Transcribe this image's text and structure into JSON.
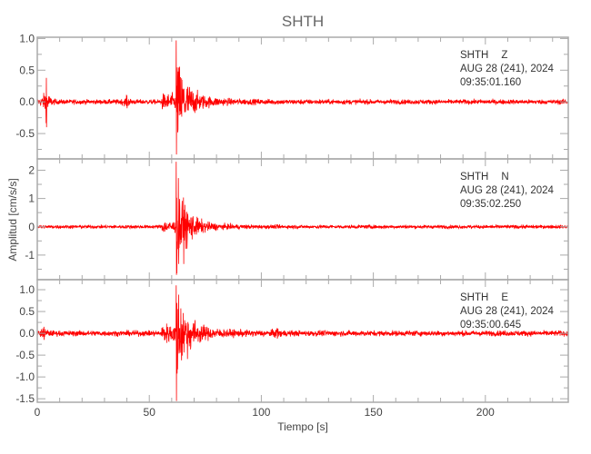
{
  "chart_data": {
    "type": "line",
    "title": "SHTH",
    "xlabel": "Tiempo [s]",
    "ylabel": "Amplitud [cm/s/s]",
    "xlim": [
      0,
      237
    ],
    "x_ticks": [
      0,
      50,
      100,
      150,
      200
    ],
    "line_color": "#ff0000",
    "axis_color": "#aaaaaa",
    "grid": false,
    "panels": [
      {
        "station": "SHTH",
        "channel": "Z",
        "date": "AUG 28 (241), 2024",
        "start_time": "09:35:01.160",
        "ylim": [
          -0.9,
          1.02
        ],
        "y_ticks": [
          1.0,
          0.5,
          0.0,
          -0.5
        ],
        "y_tick_labels": [
          "1.0",
          "0.5",
          "0.0",
          "-0.5"
        ],
        "noise": 0.03,
        "peak_time": 62,
        "peak_max": 0.97,
        "peak_min": -0.83,
        "minor_events": [
          {
            "t": 4,
            "max": 0.38,
            "min": -0.4
          },
          {
            "t": 40,
            "max": 0.1,
            "min": -0.1
          }
        ]
      },
      {
        "station": "SHTH",
        "channel": "N",
        "date": "AUG 28 (241), 2024",
        "start_time": "09:35:02.250",
        "ylim": [
          -1.87,
          2.4
        ],
        "y_ticks": [
          2,
          1,
          0,
          -1
        ],
        "y_tick_labels": [
          "2",
          "1",
          "0",
          "-1"
        ],
        "noise": 0.05,
        "peak_time": 62,
        "peak_max": 2.3,
        "peak_min": -1.7,
        "minor_events": []
      },
      {
        "station": "SHTH",
        "channel": "E",
        "date": "AUG 28 (241), 2024",
        "start_time": "09:35:00.645",
        "ylim": [
          -1.58,
          1.23
        ],
        "y_ticks": [
          1.0,
          0.5,
          0.0,
          -0.5,
          -1.0,
          -1.5
        ],
        "y_tick_labels": [
          "1.0",
          "0.5",
          "0.0",
          "-0.5",
          "-1.0",
          "-1.5"
        ],
        "noise": 0.05,
        "peak_time": 62,
        "peak_max": 1.1,
        "peak_min": -1.55,
        "minor_events": [
          {
            "t": 3,
            "max": 0.15,
            "min": -0.15
          },
          {
            "t": 107,
            "max": 0.12,
            "min": -0.12
          }
        ]
      }
    ]
  }
}
